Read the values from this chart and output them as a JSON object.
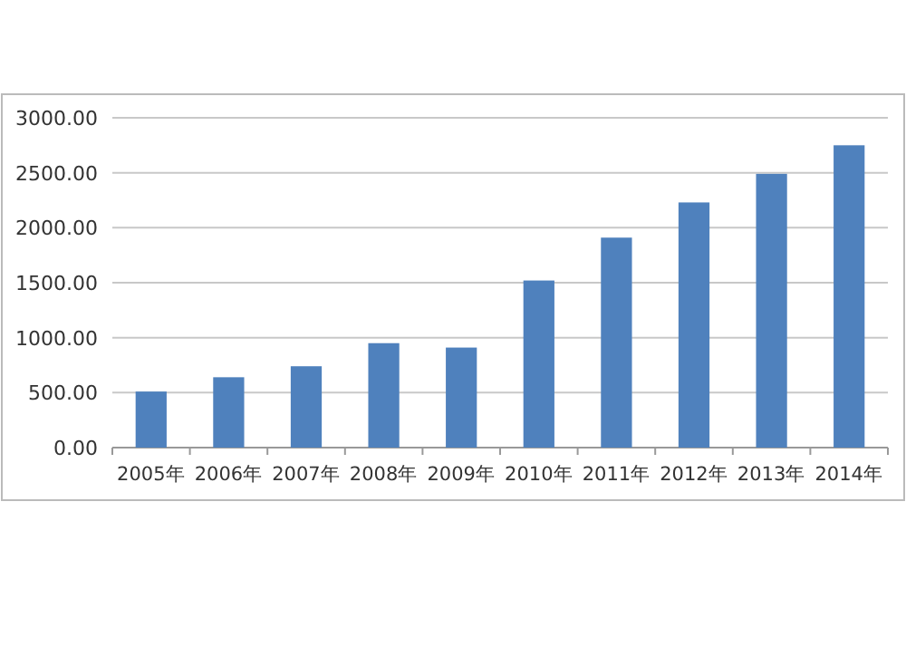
{
  "chart_data": {
    "type": "bar",
    "categories": [
      "2005年",
      "2006年",
      "2007年",
      "2008年",
      "2009年",
      "2010年",
      "2011年",
      "2012年",
      "2013年",
      "2014年"
    ],
    "values": [
      510,
      640,
      740,
      950,
      910,
      1520,
      1910,
      2230,
      2490,
      2750
    ],
    "color": "#4f81bd",
    "ylim": [
      0,
      3000
    ],
    "yticks": [
      {
        "value": 0,
        "label": "0.00"
      },
      {
        "value": 500,
        "label": "500.00"
      },
      {
        "value": 1000,
        "label": "1000.00"
      },
      {
        "value": 1500,
        "label": "1500.00"
      },
      {
        "value": 2000,
        "label": "2000.00"
      },
      {
        "value": 2500,
        "label": "2500.00"
      },
      {
        "value": 3000,
        "label": "3000.00"
      }
    ],
    "grid": "y"
  }
}
